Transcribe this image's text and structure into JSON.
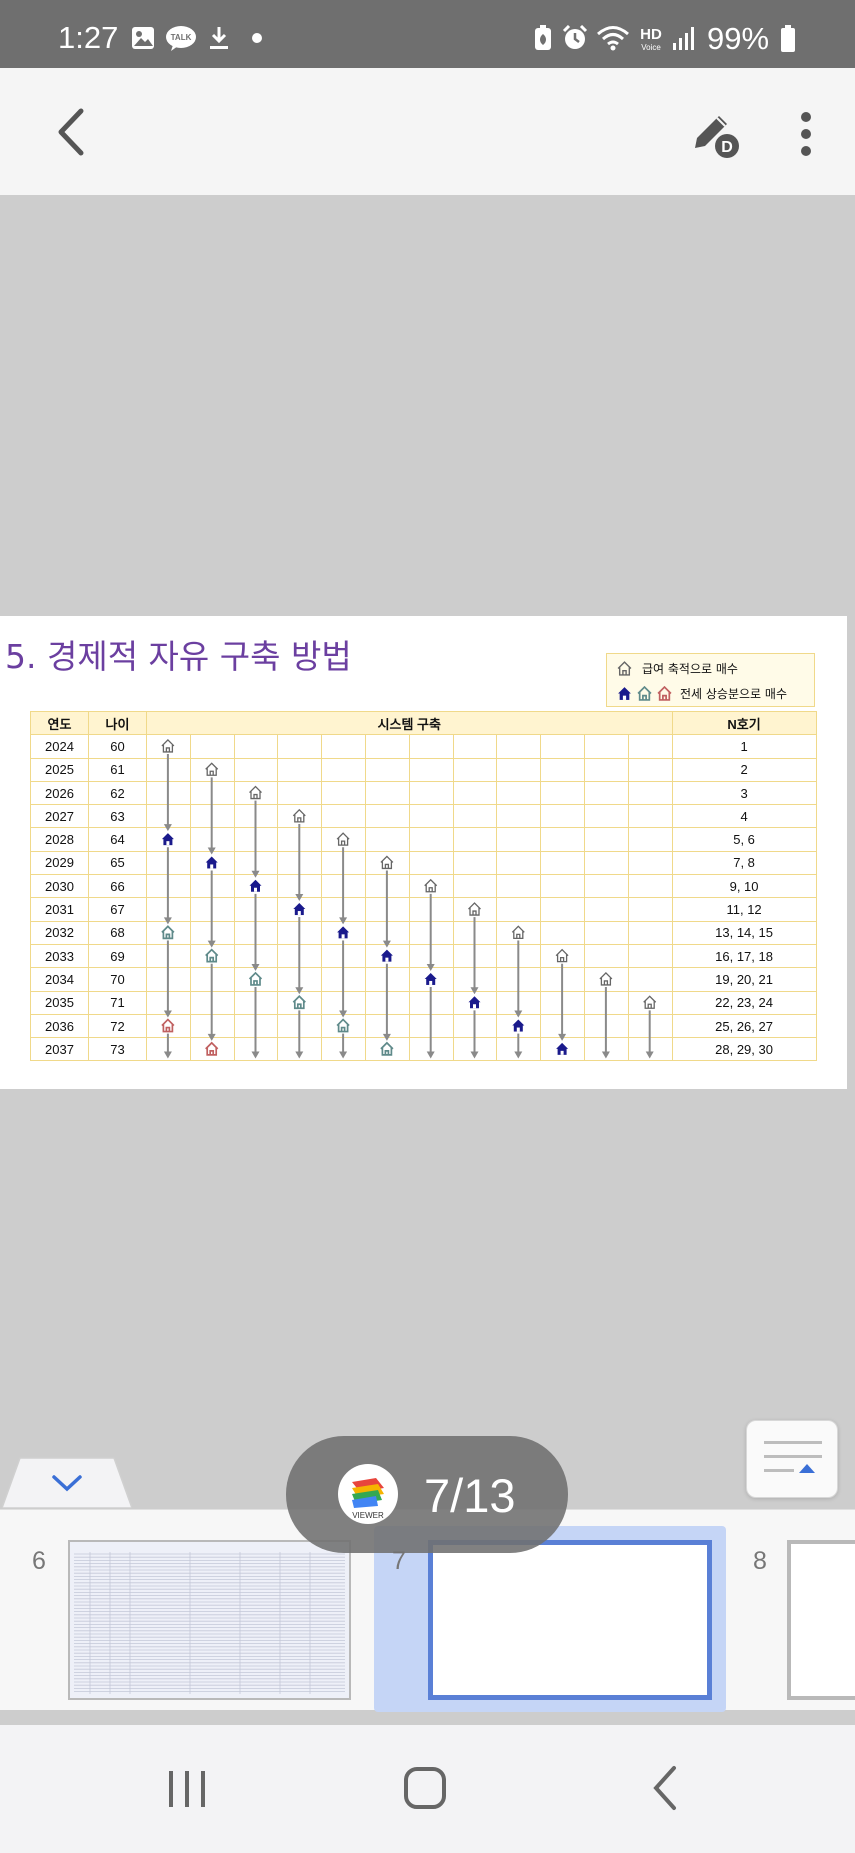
{
  "status_bar": {
    "time": "1:27",
    "battery_percent": "99%",
    "talk_label": "TALK",
    "hd_label": "HD",
    "voice_label": "Voice",
    "icons": [
      "image-icon",
      "talk-icon",
      "download-icon",
      "dot-icon",
      "battery-saver-icon",
      "alarm-icon",
      "wifi-icon",
      "hd-voice-icon",
      "signal-icon",
      "battery-icon"
    ]
  },
  "app_bar": {
    "icons": [
      "back-arrow-icon",
      "pen-edit-icon",
      "more-vert-icon"
    ],
    "pen_badge": "D"
  },
  "slide": {
    "title": "5. 경제적 자유 구축 방법",
    "legend": {
      "item1": "급여 축적으로 매수",
      "item2": "전세 상승분으로 매수"
    },
    "table": {
      "headers": [
        "연도",
        "나이",
        "시스템 구축",
        "N호기"
      ],
      "rows": [
        {
          "year": "2024",
          "age": "60",
          "n": "1"
        },
        {
          "year": "2025",
          "age": "61",
          "n": "2"
        },
        {
          "year": "2026",
          "age": "62",
          "n": "3"
        },
        {
          "year": "2027",
          "age": "63",
          "n": "4"
        },
        {
          "year": "2028",
          "age": "64",
          "n": "5, 6"
        },
        {
          "year": "2029",
          "age": "65",
          "n": "7, 8"
        },
        {
          "year": "2030",
          "age": "66",
          "n": "9, 10"
        },
        {
          "year": "2031",
          "age": "67",
          "n": "11, 12"
        },
        {
          "year": "2032",
          "age": "68",
          "n": "13, 14, 15"
        },
        {
          "year": "2033",
          "age": "69",
          "n": "16, 17, 18"
        },
        {
          "year": "2034",
          "age": "70",
          "n": "19, 20, 21"
        },
        {
          "year": "2035",
          "age": "71",
          "n": "22, 23, 24"
        },
        {
          "year": "2036",
          "age": "72",
          "n": "25, 26, 27"
        },
        {
          "year": "2037",
          "age": "73",
          "n": "28, 29, 30"
        }
      ]
    },
    "colors": {
      "title": "#6b3fa0",
      "house_outline": "#666666",
      "house_blue": "#1a1a8c",
      "house_gray": "#5f8a8a",
      "house_red": "#c06060",
      "arrow": "#8a8a8a"
    }
  },
  "bottom": {
    "sheet_tab_icon": "chevron-down-icon",
    "float_button_icon": "notes-icon",
    "page_indicator": {
      "app_label": "VIEWER",
      "text": "7/13"
    },
    "thumbnails": [
      {
        "number": "6",
        "selected": false
      },
      {
        "number": "7",
        "selected": true
      },
      {
        "number": "8",
        "selected": false
      }
    ]
  },
  "nav_bar": {
    "icons": [
      "recents-icon",
      "home-icon",
      "back-icon"
    ]
  }
}
